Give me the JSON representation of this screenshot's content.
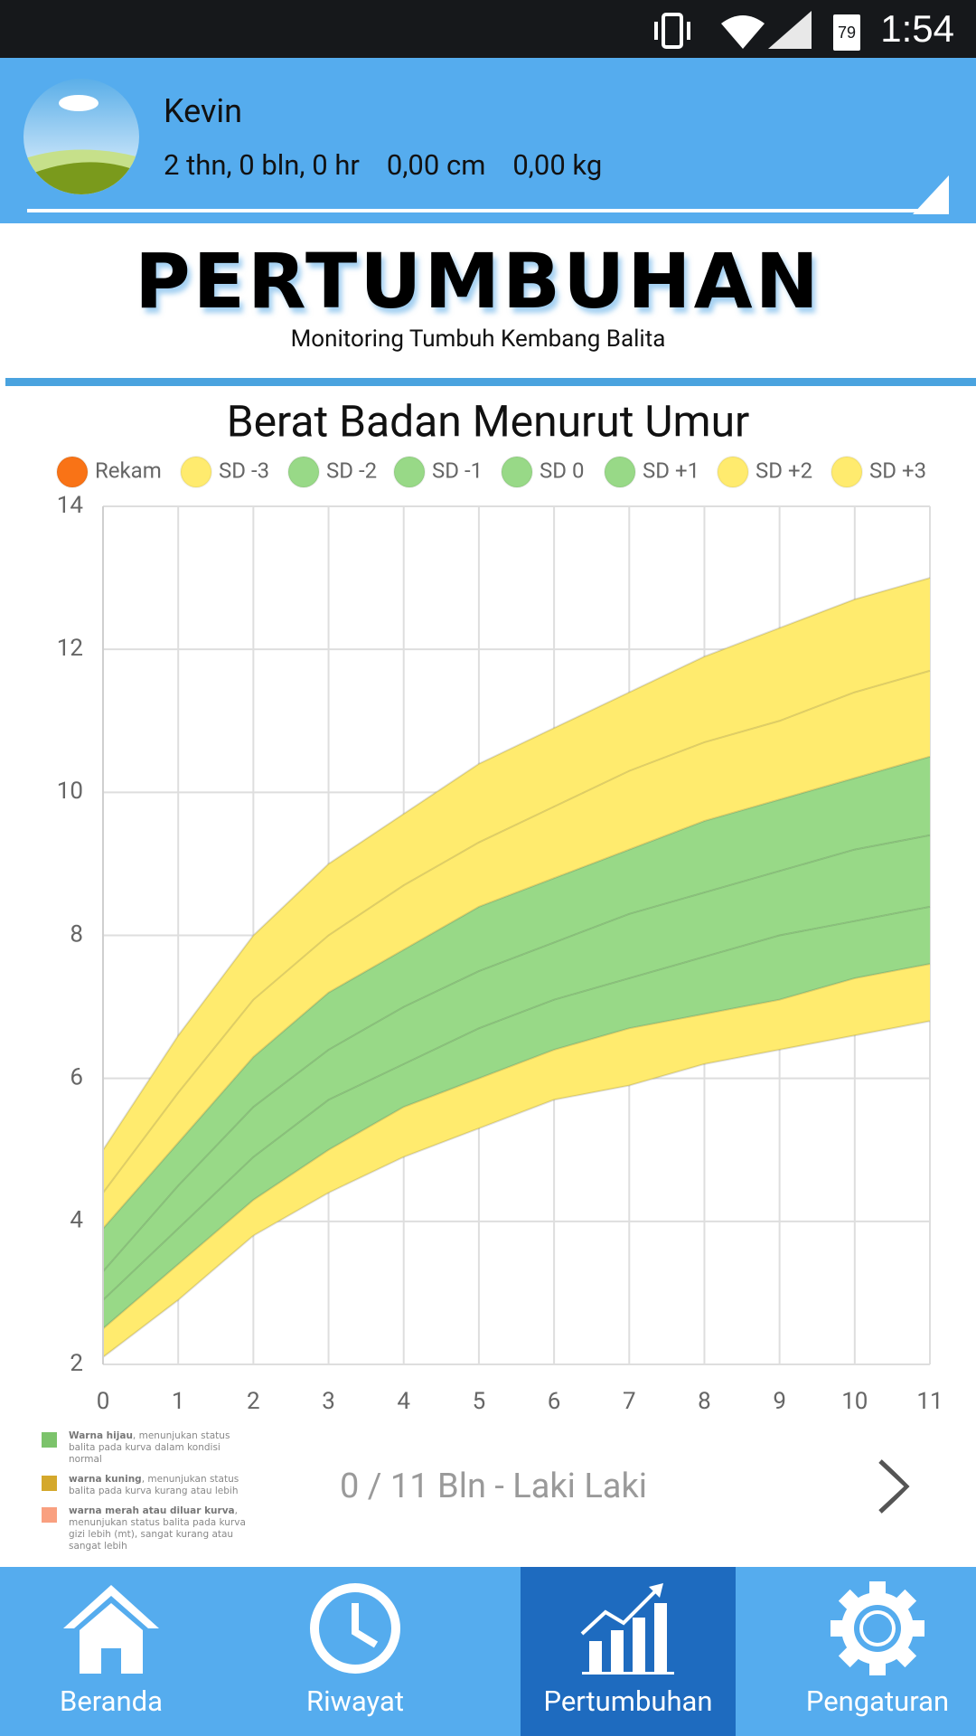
{
  "status_bar": {
    "battery": "79",
    "time": "1:54"
  },
  "header": {
    "name": "Kevin",
    "age": "2 thn, 0 bln, 0 hr",
    "height": "0,00 cm",
    "weight": "0,00 kg"
  },
  "page": {
    "title": "PERTUMBUHAN",
    "subtitle": "Monitoring Tumbuh Kembang Balita"
  },
  "chart_data": {
    "type": "line",
    "title": "Berat Badan Menurut Umur",
    "x": [
      0,
      1,
      2,
      3,
      4,
      5,
      6,
      7,
      8,
      9,
      10,
      11
    ],
    "xlim": [
      0,
      11
    ],
    "xticks": [
      0,
      1,
      2,
      3,
      4,
      5,
      6,
      7,
      8,
      9,
      10,
      11
    ],
    "ylim": [
      2,
      14
    ],
    "yticks": [
      2,
      4,
      6,
      8,
      10,
      12,
      14
    ],
    "grid": true,
    "series": [
      {
        "name": "Rekam",
        "color": "#f97316",
        "values": [
          null,
          null,
          null,
          null,
          null,
          null,
          null,
          null,
          null,
          null,
          null,
          null
        ]
      },
      {
        "name": "SD -3",
        "color": "#ffeb6e",
        "values": [
          2.1,
          2.9,
          3.8,
          4.4,
          4.9,
          5.3,
          5.7,
          5.9,
          6.2,
          6.4,
          6.6,
          6.8
        ]
      },
      {
        "name": "SD -2",
        "color": "#98d987",
        "values": [
          2.5,
          3.4,
          4.3,
          5.0,
          5.6,
          6.0,
          6.4,
          6.7,
          6.9,
          7.1,
          7.4,
          7.6
        ]
      },
      {
        "name": "SD -1",
        "color": "#98d987",
        "values": [
          2.9,
          3.9,
          4.9,
          5.7,
          6.2,
          6.7,
          7.1,
          7.4,
          7.7,
          8.0,
          8.2,
          8.4
        ]
      },
      {
        "name": "SD 0",
        "color": "#98d987",
        "values": [
          3.3,
          4.5,
          5.6,
          6.4,
          7.0,
          7.5,
          7.9,
          8.3,
          8.6,
          8.9,
          9.2,
          9.4
        ]
      },
      {
        "name": "SD +1",
        "color": "#98d987",
        "values": [
          3.9,
          5.1,
          6.3,
          7.2,
          7.8,
          8.4,
          8.8,
          9.2,
          9.6,
          9.9,
          10.2,
          10.5
        ]
      },
      {
        "name": "SD +2",
        "color": "#ffeb6e",
        "values": [
          4.4,
          5.8,
          7.1,
          8.0,
          8.7,
          9.3,
          9.8,
          10.3,
          10.7,
          11.0,
          11.4,
          11.7
        ]
      },
      {
        "name": "SD +3",
        "color": "#ffeb6e",
        "values": [
          5.0,
          6.6,
          8.0,
          9.0,
          9.7,
          10.4,
          10.9,
          11.4,
          11.9,
          12.3,
          12.7,
          13.0
        ]
      }
    ]
  },
  "notes": [
    {
      "color": "#7cc36b",
      "bold": "Warna hijau",
      "text": ", menunjukan status balita pada kurva dalam kondisi normal"
    },
    {
      "color": "#d4a82c",
      "bold": "warna kuning",
      "text": ", menunjukan status balita pada kurva kurang atau lebih"
    },
    {
      "color": "#f9a080",
      "bold": "warna merah atau diluar kurva",
      "text": ", menunjukan status balita pada kurva gizi lebih (mt), sangat kurang atau sangat lebih"
    }
  ],
  "pager": "0 / 11 Bln - Laki Laki",
  "nav": [
    "Beranda",
    "Riwayat",
    "Pertumbuhan",
    "Pengaturan"
  ]
}
